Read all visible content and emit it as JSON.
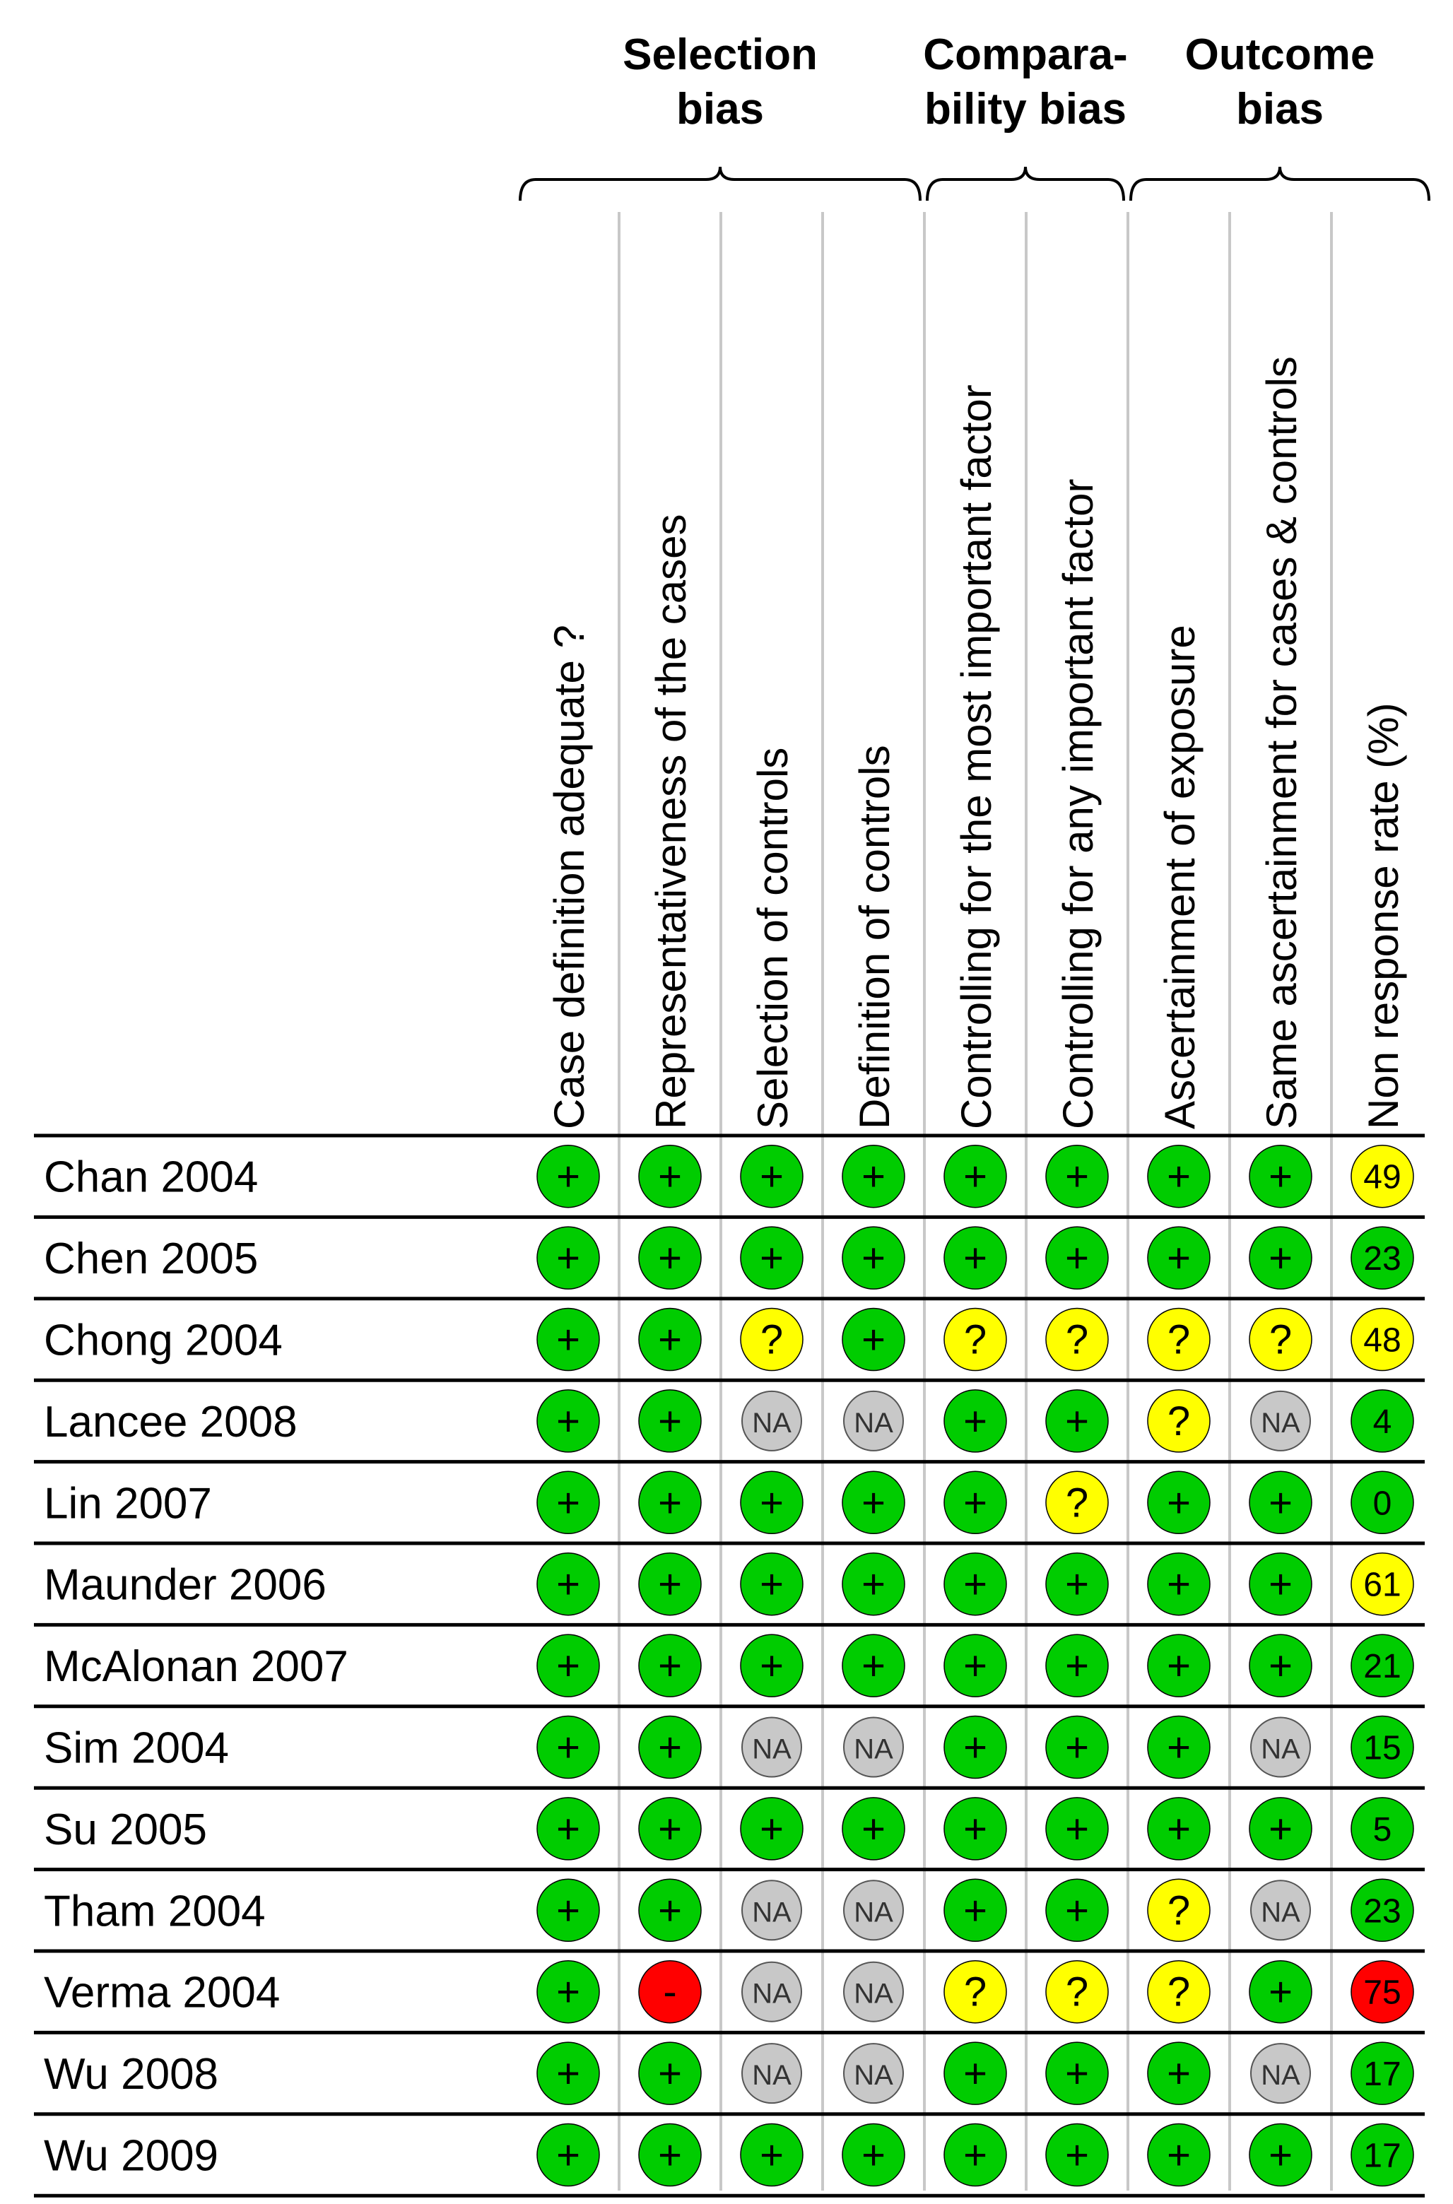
{
  "groups": [
    {
      "lines": [
        "Selection",
        "bias"
      ],
      "first_col": 0,
      "last_col": 3
    },
    {
      "lines": [
        "Compara-",
        "bility bias"
      ],
      "first_col": 4,
      "last_col": 5
    },
    {
      "lines": [
        "Outcome",
        "bias"
      ],
      "first_col": 6,
      "last_col": 8
    }
  ],
  "columns": [
    "Case definition adequate ?",
    "Representativeness of the cases",
    "Selection of controls",
    "Definition of controls",
    "Controlling for the most important factor",
    "Controlling for any important factor",
    "Ascertainment of exposure",
    "Same ascertainment for cases & controls",
    "Non response rate (%)"
  ],
  "legend_colors": {
    "+": "#00cc00",
    "?": "#ffff00",
    "-": "#ff0000",
    "NA": "#c8c8c8"
  },
  "rows": [
    {
      "study": "Chan 2004",
      "ratings": [
        "+",
        "+",
        "+",
        "+",
        "+",
        "+",
        "+",
        "+"
      ],
      "nonresponse": "49",
      "nonresponse_color": "#ffff00"
    },
    {
      "study": "Chen 2005",
      "ratings": [
        "+",
        "+",
        "+",
        "+",
        "+",
        "+",
        "+",
        "+"
      ],
      "nonresponse": "23",
      "nonresponse_color": "#00cc00"
    },
    {
      "study": "Chong 2004",
      "ratings": [
        "+",
        "+",
        "?",
        "+",
        "?",
        "?",
        "?",
        "?"
      ],
      "nonresponse": "48",
      "nonresponse_color": "#ffff00"
    },
    {
      "study": "Lancee 2008",
      "ratings": [
        "+",
        "+",
        "NA",
        "NA",
        "+",
        "+",
        "?",
        "NA"
      ],
      "nonresponse": "4",
      "nonresponse_color": "#00cc00"
    },
    {
      "study": "Lin 2007",
      "ratings": [
        "+",
        "+",
        "+",
        "+",
        "+",
        "?",
        "+",
        "+"
      ],
      "nonresponse": "0",
      "nonresponse_color": "#00cc00"
    },
    {
      "study": "Maunder 2006",
      "ratings": [
        "+",
        "+",
        "+",
        "+",
        "+",
        "+",
        "+",
        "+"
      ],
      "nonresponse": "61",
      "nonresponse_color": "#ffff00"
    },
    {
      "study": "McAlonan 2007",
      "ratings": [
        "+",
        "+",
        "+",
        "+",
        "+",
        "+",
        "+",
        "+"
      ],
      "nonresponse": "21",
      "nonresponse_color": "#00cc00"
    },
    {
      "study": "Sim 2004",
      "ratings": [
        "+",
        "+",
        "NA",
        "NA",
        "+",
        "+",
        "+",
        "NA"
      ],
      "nonresponse": "15",
      "nonresponse_color": "#00cc00"
    },
    {
      "study": "Su 2005",
      "ratings": [
        "+",
        "+",
        "+",
        "+",
        "+",
        "+",
        "+",
        "+"
      ],
      "nonresponse": "5",
      "nonresponse_color": "#00cc00"
    },
    {
      "study": "Tham 2004",
      "ratings": [
        "+",
        "+",
        "NA",
        "NA",
        "+",
        "+",
        "?",
        "NA"
      ],
      "nonresponse": "23",
      "nonresponse_color": "#00cc00"
    },
    {
      "study": "Verma 2004",
      "ratings": [
        "+",
        "-",
        "NA",
        "NA",
        "?",
        "?",
        "?",
        "+"
      ],
      "nonresponse": "75",
      "nonresponse_color": "#ff0000"
    },
    {
      "study": "Wu 2008",
      "ratings": [
        "+",
        "+",
        "NA",
        "NA",
        "+",
        "+",
        "+",
        "NA"
      ],
      "nonresponse": "17",
      "nonresponse_color": "#00cc00"
    },
    {
      "study": "Wu 2009",
      "ratings": [
        "+",
        "+",
        "+",
        "+",
        "+",
        "+",
        "+",
        "+"
      ],
      "nonresponse": "17",
      "nonresponse_color": "#00cc00"
    }
  ]
}
